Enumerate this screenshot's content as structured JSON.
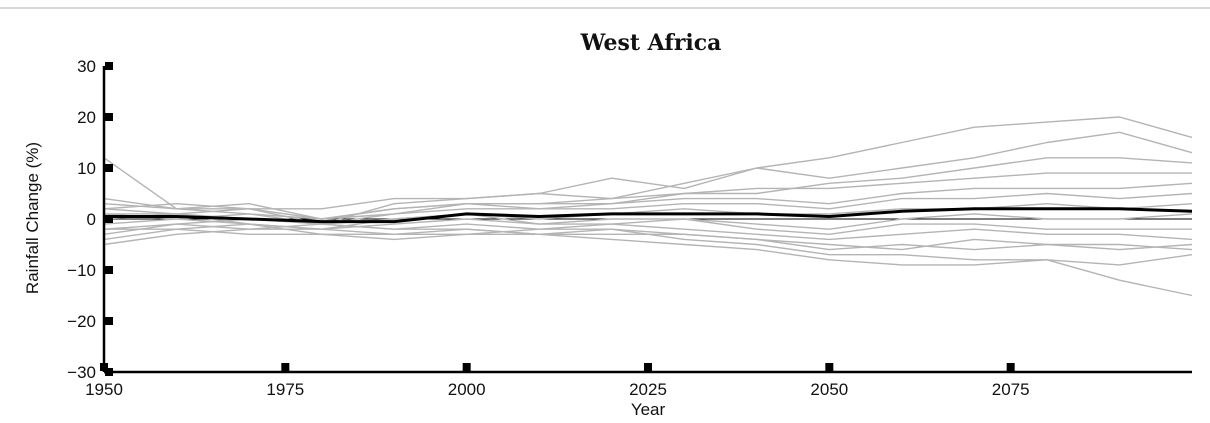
{
  "chart_data": {
    "type": "line",
    "title": "West Africa",
    "xlabel": "Year",
    "ylabel": "Rainfall Change (%)",
    "xlim": [
      1950,
      2100
    ],
    "ylim": [
      -30,
      30
    ],
    "xticks": [
      1950,
      1975,
      2000,
      2025,
      2050,
      2075
    ],
    "xtick_labels": [
      "1950",
      "1975",
      "2000",
      "2025",
      "2050",
      "2075"
    ],
    "yticks": [
      30,
      20,
      10,
      0,
      -10,
      -20,
      -30
    ],
    "ytick_labels": [
      "30",
      "20",
      "10",
      "0",
      "−10",
      "−20",
      "−30"
    ],
    "grid": false,
    "zero_line": true,
    "colors": {
      "ensemble": "#b4b4b4",
      "mean": "#000000",
      "axis": "#000000"
    },
    "x": [
      1950,
      1960,
      1970,
      1980,
      1990,
      2000,
      2010,
      2020,
      2030,
      2040,
      2050,
      2060,
      2070,
      2080,
      2090,
      2100
    ],
    "series": [
      {
        "role": "mean",
        "values": [
          0.5,
          0.5,
          0,
          -0.5,
          -0.5,
          1,
          0.5,
          1,
          1,
          1,
          0.5,
          1.5,
          2,
          2,
          2,
          1.5
        ]
      },
      {
        "role": "ensemble",
        "values": [
          12,
          2,
          2,
          -1,
          3,
          4,
          5,
          8,
          6,
          10,
          12,
          15,
          18,
          19,
          20,
          16
        ]
      },
      {
        "role": "ensemble",
        "values": [
          4,
          2,
          1,
          0,
          2,
          3,
          3,
          4,
          7,
          10,
          8,
          10,
          12,
          15,
          17,
          13
        ]
      },
      {
        "role": "ensemble",
        "values": [
          3,
          2,
          3,
          0,
          1,
          3,
          3,
          3,
          5,
          5,
          7,
          8,
          10,
          12,
          12,
          11
        ]
      },
      {
        "role": "ensemble",
        "values": [
          2,
          3,
          2,
          2,
          4,
          4,
          5,
          4,
          5,
          6,
          6,
          7,
          8,
          9,
          9,
          9
        ]
      },
      {
        "role": "ensemble",
        "values": [
          1,
          1,
          2,
          0,
          2,
          3,
          2,
          3,
          4,
          4,
          3,
          5,
          6,
          6,
          6,
          7
        ]
      },
      {
        "role": "ensemble",
        "values": [
          -1,
          0,
          1,
          -1,
          1,
          2,
          2,
          2,
          3,
          3,
          2,
          4,
          4,
          5,
          4,
          5
        ]
      },
      {
        "role": "ensemble",
        "values": [
          0,
          1,
          -1,
          -2,
          0,
          1,
          0,
          1,
          2,
          1,
          1,
          2,
          2,
          3,
          2,
          3
        ]
      },
      {
        "role": "ensemble",
        "values": [
          -2,
          -1,
          0,
          -1,
          0,
          1,
          -1,
          0,
          0,
          -1,
          -2,
          0,
          1,
          0,
          0,
          1
        ]
      },
      {
        "role": "ensemble",
        "values": [
          1,
          0,
          -1,
          -2,
          -1,
          0,
          -1,
          -1,
          0,
          -2,
          -3,
          -1,
          -1,
          -2,
          -2,
          -2
        ]
      },
      {
        "role": "ensemble",
        "values": [
          -3,
          -1,
          -2,
          -1,
          -2,
          -1,
          -2,
          -1,
          -2,
          -3,
          -4,
          -3,
          -2,
          -3,
          -3,
          -4
        ]
      },
      {
        "role": "ensemble",
        "values": [
          -4,
          -2,
          -1,
          -3,
          -3,
          -2,
          -3,
          -3,
          -3,
          -4,
          -6,
          -5,
          -6,
          -5,
          -5,
          -6
        ]
      },
      {
        "role": "ensemble",
        "values": [
          -5,
          -3,
          -2,
          -2,
          -3,
          -3,
          -2,
          -2,
          -4,
          -5,
          -7,
          -7,
          -8,
          -8,
          -9,
          -7
        ]
      },
      {
        "role": "ensemble",
        "values": [
          -2,
          -2,
          -3,
          -3,
          -4,
          -3,
          -3,
          -4,
          -5,
          -6,
          -8,
          -9,
          -9,
          -8,
          -12,
          -15
        ]
      },
      {
        "role": "ensemble",
        "values": [
          2,
          1,
          0,
          -1,
          -2,
          -2,
          -3,
          -2,
          -3,
          -4,
          -5,
          -6,
          -4,
          -5,
          -6,
          -5
        ]
      }
    ]
  }
}
